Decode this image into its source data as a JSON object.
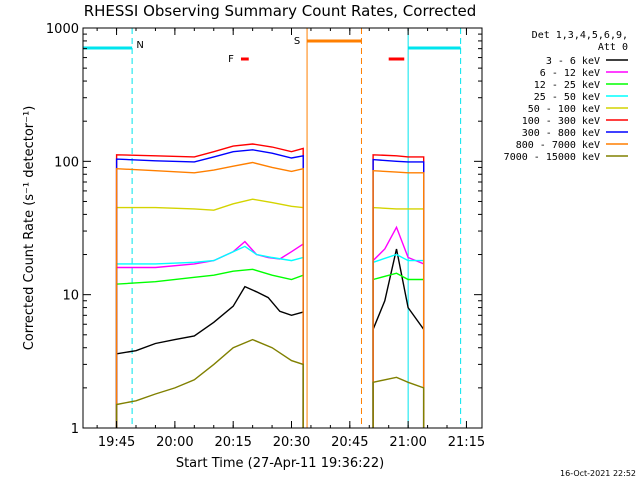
{
  "chart_data": {
    "type": "line",
    "title": "RHESSI Observing Summary Count Rates, Corrected",
    "xlabel": "Start Time (27-Apr-11 19:36:22)",
    "ylabel": "Corrected Count Rate (s⁻¹ detector⁻¹)",
    "ylim": [
      1,
      1000
    ],
    "y_scale": "log",
    "xlim": [
      "19:36:22",
      "21:19:00"
    ],
    "x_ticks": [
      "19:45",
      "20:00",
      "20:15",
      "20:30",
      "20:45",
      "21:00",
      "21:15"
    ],
    "y_ticks": [
      "1",
      "10",
      "100",
      "1000"
    ],
    "legend_header": [
      "Det 1,3,4,5,6,9,",
      "Att 0"
    ],
    "legend_position": "top-right",
    "footer_timestamp": "16-Oct-2021 22:52",
    "flags": [
      {
        "label": "N",
        "color": "#00e5ee",
        "segments": [
          [
            "19:36:22",
            "19:49:00"
          ],
          [
            "21:00:00",
            "21:13:30"
          ]
        ]
      },
      {
        "label": "F",
        "color": "#ff0000",
        "segments": [
          [
            "20:17:00",
            "20:19:00"
          ],
          [
            "20:55:00",
            "20:59:00"
          ]
        ]
      },
      {
        "label": "S",
        "color": "#ff7f00",
        "segments": [
          [
            "20:34:00",
            "20:48:00"
          ]
        ]
      }
    ],
    "vertical_markers": [
      {
        "time": "19:49:00",
        "color": "#00e5ee",
        "style": "dashed"
      },
      {
        "time": "20:34:00",
        "color": "#ff7f00",
        "style": "solid"
      },
      {
        "time": "20:48:00",
        "color": "#ff7f00",
        "style": "dashed"
      },
      {
        "time": "21:00:00",
        "color": "#00e5ee",
        "style": "solid"
      },
      {
        "time": "21:13:30",
        "color": "#00e5ee",
        "style": "dashed"
      }
    ],
    "observation_windows": [
      [
        "19:45:00",
        "20:34:00"
      ],
      [
        "20:51:00",
        "21:04:00"
      ]
    ],
    "series": [
      {
        "name": "3 - 6 keV",
        "color": "#000000",
        "times": [
          "19:45",
          "19:50",
          "19:55",
          "20:00",
          "20:05",
          "20:10",
          "20:15",
          "20:18",
          "20:21",
          "20:24",
          "20:27",
          "20:30",
          "20:33",
          "20:51",
          "20:54",
          "20:57",
          "21:00",
          "21:04"
        ],
        "values": [
          3.6,
          3.8,
          4.3,
          4.6,
          4.9,
          6.2,
          8.2,
          11.5,
          10.5,
          9.5,
          7.5,
          7.0,
          7.4,
          5.5,
          9.0,
          22.0,
          8.0,
          5.5
        ]
      },
      {
        "name": "6 - 12 keV",
        "color": "#ff00ff",
        "times": [
          "19:45",
          "19:55",
          "20:05",
          "20:10",
          "20:15",
          "20:18",
          "20:21",
          "20:24",
          "20:27",
          "20:30",
          "20:33",
          "20:51",
          "20:54",
          "20:57",
          "21:00",
          "21:04"
        ],
        "values": [
          16.0,
          16.0,
          17.0,
          18.0,
          21.0,
          25.0,
          20.0,
          19.0,
          18.5,
          21.0,
          24.0,
          18.0,
          22.0,
          32.0,
          19.0,
          17.0
        ]
      },
      {
        "name": "12 - 25 keV",
        "color": "#00ff00",
        "times": [
          "19:45",
          "19:55",
          "20:05",
          "20:10",
          "20:15",
          "20:20",
          "20:25",
          "20:30",
          "20:33",
          "20:51",
          "20:57",
          "21:00",
          "21:04"
        ],
        "values": [
          12.0,
          12.5,
          13.5,
          14.0,
          15.0,
          15.5,
          14.0,
          13.0,
          14.0,
          13.0,
          14.5,
          13.0,
          13.0
        ]
      },
      {
        "name": "25 - 50 keV",
        "color": "#00ffff",
        "times": [
          "19:45",
          "19:55",
          "20:05",
          "20:10",
          "20:15",
          "20:18",
          "20:21",
          "20:25",
          "20:30",
          "20:33",
          "20:51",
          "20:57",
          "21:00",
          "21:04"
        ],
        "values": [
          17.0,
          17.0,
          17.5,
          18.0,
          21.0,
          23.0,
          20.0,
          19.0,
          18.0,
          19.0,
          17.5,
          20.0,
          18.0,
          18.0
        ]
      },
      {
        "name": "50 - 100 keV",
        "color": "#d4d400",
        "times": [
          "19:45",
          "19:55",
          "20:05",
          "20:10",
          "20:15",
          "20:20",
          "20:25",
          "20:30",
          "20:33",
          "20:51",
          "20:57",
          "21:00",
          "21:04"
        ],
        "values": [
          45.0,
          45.0,
          44.0,
          43.0,
          48.0,
          52.0,
          49.0,
          46.0,
          45.0,
          45.0,
          44.0,
          44.0,
          44.0
        ]
      },
      {
        "name": "100 - 300 keV",
        "color": "#ff0000",
        "times": [
          "19:45",
          "19:55",
          "20:05",
          "20:10",
          "20:15",
          "20:20",
          "20:25",
          "20:30",
          "20:33",
          "20:51",
          "20:57",
          "21:00",
          "21:04"
        ],
        "values": [
          112.0,
          110.0,
          108.0,
          118.0,
          130.0,
          135.0,
          128.0,
          118.0,
          125.0,
          112.0,
          110.0,
          108.0,
          108.0
        ]
      },
      {
        "name": "300 - 800 keV",
        "color": "#0000ff",
        "times": [
          "19:45",
          "19:55",
          "20:05",
          "20:10",
          "20:15",
          "20:20",
          "20:25",
          "20:30",
          "20:33",
          "20:51",
          "20:57",
          "21:00",
          "21:04"
        ],
        "values": [
          104.0,
          101.0,
          99.0,
          108.0,
          118.0,
          122.0,
          115.0,
          106.0,
          110.0,
          103.0,
          100.0,
          99.0,
          99.0
        ]
      },
      {
        "name": "800 - 7000 keV",
        "color": "#ff7f00",
        "times": [
          "19:45",
          "19:55",
          "20:05",
          "20:10",
          "20:15",
          "20:20",
          "20:25",
          "20:30",
          "20:33",
          "20:51",
          "20:57",
          "21:00",
          "21:04"
        ],
        "values": [
          88.0,
          85.0,
          82.0,
          86.0,
          92.0,
          98.0,
          90.0,
          84.0,
          88.0,
          85.0,
          83.0,
          82.0,
          82.0
        ]
      },
      {
        "name": "7000 - 15000 keV",
        "color": "#808000",
        "times": [
          "19:45",
          "19:50",
          "19:55",
          "20:00",
          "20:05",
          "20:10",
          "20:15",
          "20:20",
          "20:25",
          "20:30",
          "20:33",
          "20:51",
          "20:57",
          "21:00",
          "21:04"
        ],
        "values": [
          1.5,
          1.6,
          1.8,
          2.0,
          2.3,
          3.0,
          4.0,
          4.6,
          4.0,
          3.2,
          3.0,
          2.2,
          2.4,
          2.2,
          2.0
        ]
      }
    ]
  }
}
